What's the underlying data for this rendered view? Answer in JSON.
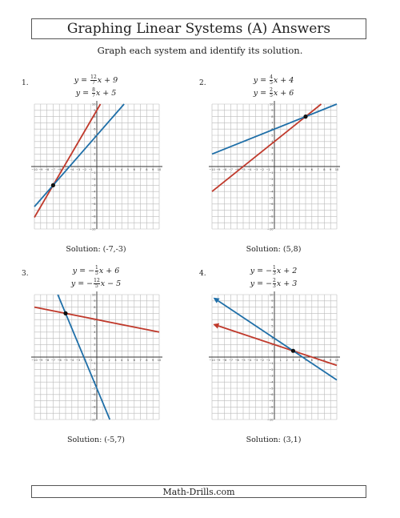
{
  "header": {
    "title": "Graphing Linear Systems (A) Answers",
    "subtitle": "Graph each system and identify its solution."
  },
  "footer": {
    "site": "Math-Drills.com"
  },
  "colors": {
    "line1": "#c0392b",
    "line2": "#1f6fa8",
    "grid": "#bbbbbb",
    "axis": "#333333"
  },
  "problems": [
    {
      "number": "1.",
      "eq1": {
        "prefix": "y = ",
        "num": "12",
        "den": "7",
        "suffix": "x + 9"
      },
      "eq2": {
        "prefix": "y = ",
        "num": "8",
        "den": "7",
        "suffix": "x + 5"
      },
      "solution": "Solution: (-7,-3)"
    },
    {
      "number": "2.",
      "eq1": {
        "prefix": "y = ",
        "num": "4",
        "den": "5",
        "suffix": "x + 4"
      },
      "eq2": {
        "prefix": "y = ",
        "num": "2",
        "den": "5",
        "suffix": "x + 6"
      },
      "solution": "Solution: (5,8)"
    },
    {
      "number": "3.",
      "eq1": {
        "prefix": "y = −",
        "num": "1",
        "den": "5",
        "suffix": "x + 6"
      },
      "eq2": {
        "prefix": "y = −",
        "num": "12",
        "den": "5",
        "suffix": "x − 5"
      },
      "solution": "Solution: (-5,7)"
    },
    {
      "number": "4.",
      "eq1": {
        "prefix": "y = −",
        "num": "1",
        "den": "3",
        "suffix": "x + 2"
      },
      "eq2": {
        "prefix": "y = −",
        "num": "2",
        "den": "3",
        "suffix": "x + 3"
      },
      "solution": "Solution: (3,1)"
    }
  ],
  "chart_data": [
    {
      "type": "line",
      "xlim": [
        -10,
        10
      ],
      "ylim": [
        -10,
        10
      ],
      "grid": true,
      "series": [
        {
          "slope": 1.7142857,
          "intercept": 9,
          "color": "#c0392b"
        },
        {
          "slope": 1.1428571,
          "intercept": 5,
          "color": "#1f6fa8"
        }
      ],
      "point": [
        -7,
        -3
      ]
    },
    {
      "type": "line",
      "xlim": [
        -10,
        10
      ],
      "ylim": [
        -10,
        10
      ],
      "grid": true,
      "series": [
        {
          "slope": 0.8,
          "intercept": 4,
          "color": "#c0392b"
        },
        {
          "slope": 0.4,
          "intercept": 6,
          "color": "#1f6fa8"
        }
      ],
      "point": [
        5,
        8
      ]
    },
    {
      "type": "line",
      "xlim": [
        -10,
        10
      ],
      "ylim": [
        -10,
        10
      ],
      "grid": true,
      "series": [
        {
          "slope": -0.2,
          "intercept": 6,
          "color": "#c0392b"
        },
        {
          "slope": -2.4,
          "intercept": -5,
          "color": "#1f6fa8"
        }
      ],
      "point": [
        -5,
        7
      ]
    },
    {
      "type": "line",
      "xlim": [
        -10,
        10
      ],
      "ylim": [
        -10,
        10
      ],
      "grid": true,
      "series": [
        {
          "slope": -0.3333333,
          "intercept": 2,
          "color": "#c0392b",
          "arrow_left": true
        },
        {
          "slope": -0.6666667,
          "intercept": 3,
          "color": "#1f6fa8",
          "arrow_left": true
        }
      ],
      "point": [
        3,
        1
      ]
    }
  ]
}
